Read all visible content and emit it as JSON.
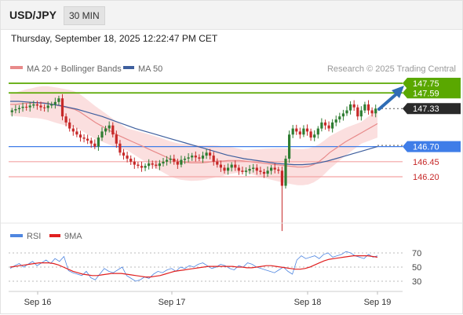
{
  "header": {
    "pair": "USD/JPY",
    "timeframe": "30 MIN"
  },
  "datetime": "Thursday, September 18, 2025 12:22:47 PM CET",
  "legend": {
    "ma20": "MA 20 + Bollinger Bands",
    "ma50": "MA 50",
    "credit": "Research © 2025 Trading Central",
    "rsi": "RSI",
    "ma9": "9MA"
  },
  "colors": {
    "bull": "#2e7d32",
    "bear": "#c62828",
    "ma20": "#e88a8a",
    "ma50": "#3f5f9e",
    "band": "#f8c9c9",
    "resistance": "#5aa800",
    "pivot": "#3f7de8",
    "support": "#f3a3a3",
    "price_tag": "#2a2a2a",
    "rsi": "#4f86e0",
    "rsi_ma": "#e02020"
  },
  "chart_data": [
    {
      "type": "candlestick",
      "x_ticks": [
        "Sep 16",
        "Sep 17",
        "Sep 18",
        "Sep 19"
      ],
      "ylim": [
        145.0,
        147.9
      ],
      "levels": [
        {
          "label": "147.75",
          "value": 147.75,
          "kind": "resistance"
        },
        {
          "label": "147.59",
          "value": 147.59,
          "kind": "resistance"
        },
        {
          "label": "147.33",
          "value": 147.33,
          "kind": "current"
        },
        {
          "label": "146.70",
          "value": 146.7,
          "kind": "pivot"
        },
        {
          "label": "146.45",
          "value": 146.45,
          "kind": "support"
        },
        {
          "label": "146.20",
          "value": 146.2,
          "kind": "support"
        }
      ],
      "close_path": [
        147.3,
        147.32,
        147.34,
        147.36,
        147.35,
        147.38,
        147.4,
        147.38,
        147.35,
        147.34,
        147.38,
        147.4,
        147.44,
        147.5,
        147.2,
        147.1,
        147.0,
        146.95,
        146.9,
        146.85,
        146.83,
        146.8,
        146.75,
        146.7,
        146.85,
        146.95,
        147.0,
        147.05,
        146.9,
        146.75,
        146.6,
        146.55,
        146.5,
        146.45,
        146.4,
        146.38,
        146.35,
        146.38,
        146.42,
        146.4,
        146.38,
        146.42,
        146.45,
        146.48,
        146.5,
        146.45,
        146.4,
        146.48,
        146.5,
        146.52,
        146.55,
        146.52,
        146.5,
        146.55,
        146.6,
        146.55,
        146.45,
        146.4,
        146.35,
        146.3,
        146.35,
        146.4,
        146.35,
        146.3,
        146.28,
        146.3,
        146.33,
        146.35,
        146.3,
        146.28,
        146.25,
        146.3,
        146.35,
        146.32,
        146.3,
        146.05,
        146.5,
        146.9,
        147.0,
        146.95,
        146.9,
        147.0,
        146.95,
        146.85,
        146.9,
        147.0,
        147.1,
        147.05,
        147.0,
        147.1,
        147.15,
        147.2,
        147.25,
        147.3,
        147.4,
        147.35,
        147.2,
        147.3,
        147.4,
        147.3,
        147.25,
        147.33
      ],
      "low": 145.3,
      "low_label": "",
      "ma20": [
        147.4,
        147.4,
        147.41,
        147.42,
        147.42,
        147.43,
        147.43,
        147.42,
        147.4,
        147.38,
        147.36,
        147.34,
        147.32,
        147.28,
        147.22,
        147.16,
        147.1,
        147.05,
        147.0,
        146.95,
        146.9,
        146.86,
        146.82,
        146.78,
        146.74,
        146.7,
        146.66,
        146.62,
        146.58,
        146.54,
        146.5,
        146.47,
        146.45,
        146.44,
        146.43,
        146.43,
        146.43,
        146.44,
        146.45,
        146.46,
        146.46,
        146.47,
        146.47,
        146.47,
        146.46,
        146.45,
        146.44,
        146.43,
        146.42,
        146.41,
        146.4,
        146.39,
        146.38,
        146.37,
        146.36,
        146.36,
        146.37,
        146.4,
        146.45,
        146.52,
        146.6,
        146.66,
        146.72,
        146.78,
        146.83,
        146.88,
        146.93,
        146.98,
        147.03,
        147.08
      ],
      "ma50": [
        147.45,
        147.45,
        147.44,
        147.43,
        147.42,
        147.4,
        147.38,
        147.35,
        147.32,
        147.28,
        147.24,
        147.2,
        147.15,
        147.1,
        147.05,
        147.0,
        146.96,
        146.92,
        146.88,
        146.84,
        146.8,
        146.76,
        146.72,
        146.68,
        146.64,
        146.6,
        146.56,
        146.53,
        146.5,
        146.48,
        146.46,
        146.44,
        146.42,
        146.41,
        146.4,
        146.4,
        146.41,
        146.43,
        146.46,
        146.5,
        146.54,
        146.58,
        146.62,
        146.66,
        146.7
      ],
      "series": [
        {
          "name": "MA 20 + Bollinger Bands"
        },
        {
          "name": "MA 50"
        }
      ]
    },
    {
      "type": "line",
      "title": "RSI",
      "ylim": [
        20,
        80
      ],
      "y_ticks": [
        30,
        50,
        70
      ],
      "series": [
        {
          "name": "RSI",
          "values": [
            48,
            52,
            55,
            50,
            54,
            58,
            52,
            56,
            60,
            55,
            62,
            58,
            65,
            45,
            42,
            40,
            38,
            44,
            35,
            32,
            40,
            48,
            44,
            42,
            46,
            50,
            38,
            34,
            30,
            32,
            36,
            34,
            40,
            44,
            42,
            46,
            48,
            44,
            50,
            48,
            52,
            50,
            54,
            56,
            52,
            48,
            50,
            54,
            52,
            48,
            46,
            52,
            50,
            56,
            54,
            50,
            48,
            46,
            44,
            42,
            46,
            50,
            44,
            40,
            60,
            66,
            62,
            64,
            66,
            62,
            68,
            70,
            64,
            66,
            68,
            72,
            70,
            66,
            64,
            62,
            68,
            64,
            66
          ]
        },
        {
          "name": "9MA",
          "values": [
            50,
            51,
            52,
            53,
            54,
            55,
            56,
            56,
            56,
            55,
            53,
            50,
            47,
            44,
            42,
            40,
            39,
            38,
            38,
            39,
            40,
            41,
            41,
            41,
            40,
            39,
            38,
            37,
            36,
            36,
            37,
            38,
            40,
            42,
            44,
            45,
            46,
            47,
            48,
            49,
            50,
            51,
            51,
            51,
            51,
            51,
            51,
            50,
            50,
            49,
            49,
            50,
            51,
            52,
            52,
            51,
            50,
            49,
            48,
            47,
            47,
            48,
            50,
            53,
            56,
            59,
            61,
            62,
            63,
            64,
            65,
            66,
            66,
            66,
            66,
            65,
            64
          ]
        }
      ]
    }
  ]
}
